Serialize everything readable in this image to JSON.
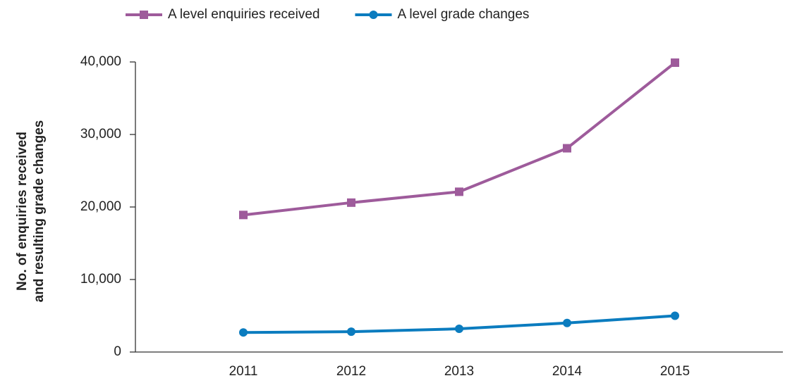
{
  "chart_data": {
    "type": "line",
    "ylabel": [
      "No. of enquiries received",
      "and resulting grade changes"
    ],
    "categories": [
      "2011",
      "2012",
      "2013",
      "2014",
      "2015"
    ],
    "series": [
      {
        "name": "A level enquiries received",
        "color": "#9e5b9b",
        "marker": "square",
        "values": [
          18900,
          20600,
          22100,
          28100,
          39900
        ]
      },
      {
        "name": "A level grade changes",
        "color": "#0b7cbf",
        "marker": "circle",
        "values": [
          2700,
          2800,
          3200,
          4000,
          5000
        ]
      }
    ],
    "ylim": [
      0,
      40000
    ],
    "yticks": [
      0,
      {
        "value": 10000,
        "label": "10,000"
      },
      {
        "value": 20000,
        "label": "20,000"
      },
      {
        "value": 30000,
        "label": "30,000"
      },
      {
        "value": 40000,
        "label": "40,000"
      }
    ],
    "grid": false,
    "legend": "top"
  }
}
